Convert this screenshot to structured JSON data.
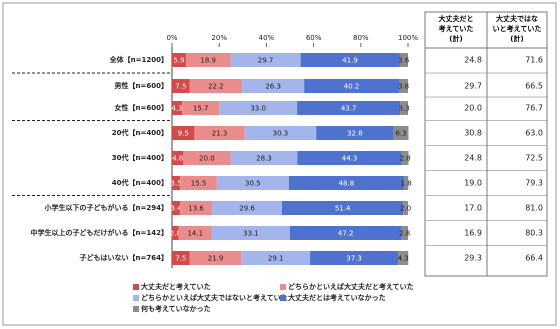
{
  "chart_data": {
    "type": "bar",
    "orientation": "horizontal",
    "stacked": true,
    "categories": [
      "全体【n=1200】",
      "男性【n=600】",
      "女性【n=600】",
      "20代【n=400】",
      "30代【n=400】",
      "40代【n=400】",
      "小学生以下の子どもがいる【n=294】",
      "中学生以上の子どもだけがいる【n=142】",
      "子どもはいない【n=764】"
    ],
    "series": [
      {
        "name": "大丈夫だと考えていた",
        "color": "#d24a4a",
        "values": [
          5.9,
          7.5,
          4.3,
          9.5,
          4.8,
          3.5,
          3.4,
          2.8,
          7.5
        ],
        "value_labels": [
          "5.9",
          "7.5",
          "4.3",
          "9.5",
          "4.8",
          "3.5",
          "3.4",
          "2.8",
          "7.5"
        ]
      },
      {
        "name": "どちらかといえば大丈夫だと考えていた",
        "color": "#eb8c8c",
        "values": [
          18.9,
          22.2,
          15.7,
          21.3,
          20.0,
          15.5,
          13.6,
          14.1,
          21.9
        ],
        "value_labels": [
          "18.9",
          "22.2",
          "15.7",
          "21.3",
          "20.0",
          "15.5",
          "13.6",
          "14.1",
          "21.9"
        ]
      },
      {
        "name": "どちらかといえば大丈夫ではないと考えていた",
        "color": "#a3b5ea",
        "values": [
          29.7,
          26.3,
          33.0,
          30.3,
          28.3,
          30.5,
          29.6,
          33.1,
          29.1
        ],
        "value_labels": [
          "29.7",
          "26.3",
          "33.0",
          "30.3",
          "28.3",
          "30.5",
          "29.6",
          "33.1",
          "29.1"
        ]
      },
      {
        "name": "大丈夫だとは考えていなかった",
        "color": "#4f72cf",
        "values": [
          41.9,
          40.2,
          43.7,
          32.8,
          44.3,
          48.8,
          51.4,
          47.2,
          37.3
        ],
        "value_labels": [
          "41.9",
          "40.2",
          "43.7",
          "32.8",
          "44.3",
          "48.8",
          "51.4",
          "47.2",
          "37.3"
        ]
      },
      {
        "name": "何も考えていなかった",
        "color": "#8c8c8c",
        "values": [
          3.6,
          3.8,
          3.3,
          6.3,
          2.8,
          1.8,
          2.0,
          2.8,
          4.3
        ],
        "value_labels": [
          "3.6",
          "3.8",
          "3.3",
          "6.3",
          "2.8",
          "1.8",
          "2.0",
          "2.8",
          "4.3"
        ]
      }
    ],
    "xlim": [
      0,
      100
    ],
    "xticks": [
      {
        "value": 0,
        "label": "0%"
      },
      {
        "value": 20,
        "label": "20%"
      },
      {
        "value": 40,
        "label": "40%"
      },
      {
        "value": 60,
        "label": "60%"
      },
      {
        "value": 80,
        "label": "80%"
      },
      {
        "value": 100,
        "label": "100%"
      }
    ],
    "grid": false,
    "legend": "bottom"
  },
  "table": {
    "headers": [
      "大丈夫だと\n考えていた\n(計)",
      "大丈夫ではな\nいと考えていた\n(計)"
    ],
    "rows": [
      [
        "24.8",
        "71.6"
      ],
      [
        "29.7",
        "66.5"
      ],
      [
        "20.0",
        "76.7"
      ],
      [
        "30.8",
        "63.0"
      ],
      [
        "24.8",
        "72.5"
      ],
      [
        "19.0",
        "79.3"
      ],
      [
        "17.0",
        "81.0"
      ],
      [
        "16.9",
        "80.3"
      ],
      [
        "29.3",
        "66.4"
      ]
    ]
  }
}
